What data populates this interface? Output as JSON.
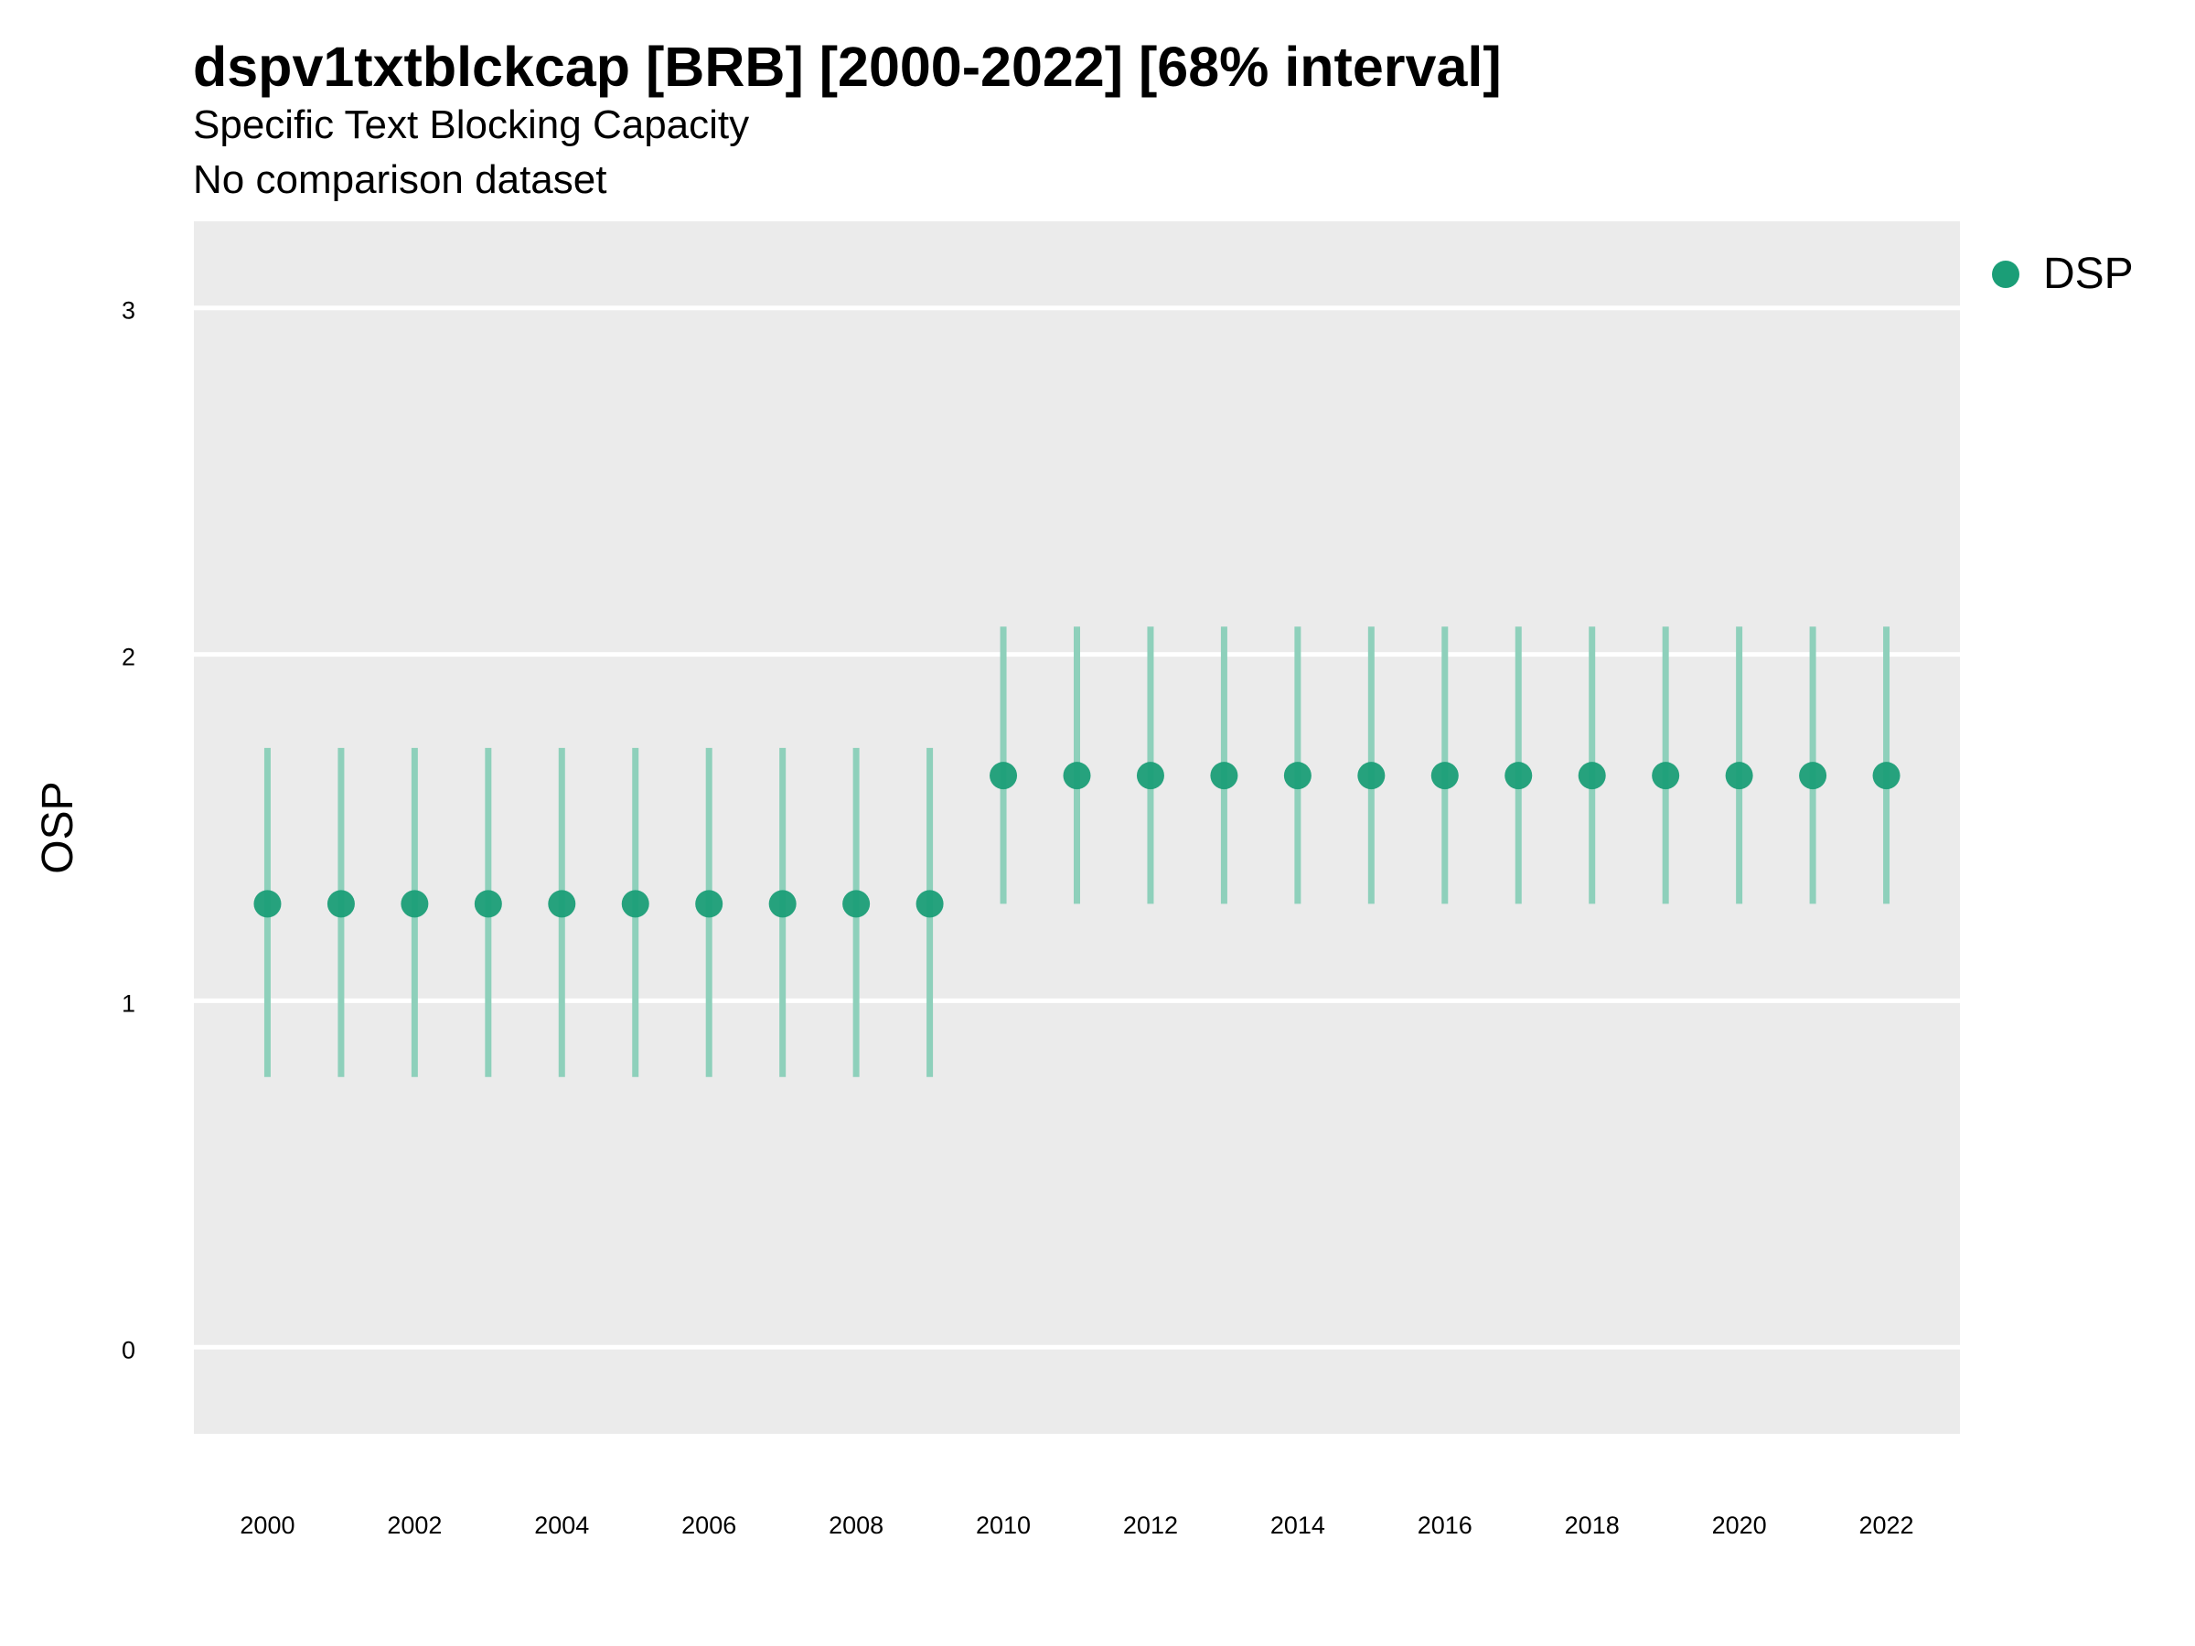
{
  "title": "dspv1txtblckcap [BRB] [2000-2022] [68% interval]",
  "subtitle": "Specific Text Blocking Capacity",
  "caption": "No comparison dataset",
  "colors": {
    "panel_bg": "#EBEBEB",
    "grid": "#FFFFFF",
    "point": "#1B9E77",
    "interval": "#8ED0BB"
  },
  "chart_data": {
    "type": "scatter",
    "ylabel": "OSP",
    "xlabel": "",
    "xlim": [
      1999,
      2023
    ],
    "ylim": [
      -0.25,
      3.25
    ],
    "yticks": [
      0,
      1,
      2,
      3
    ],
    "xticks": [
      2000,
      2002,
      2004,
      2006,
      2008,
      2010,
      2012,
      2014,
      2016,
      2018,
      2020,
      2022
    ],
    "grid": true,
    "legend": {
      "position": "right",
      "entries": [
        "DSP"
      ]
    },
    "series": [
      {
        "name": "DSP",
        "x": [
          2000,
          2001,
          2002,
          2003,
          2004,
          2005,
          2006,
          2007,
          2008,
          2009,
          2010,
          2011,
          2012,
          2013,
          2014,
          2015,
          2016,
          2017,
          2018,
          2019,
          2020,
          2021,
          2022
        ],
        "y": [
          1.28,
          1.28,
          1.28,
          1.28,
          1.28,
          1.28,
          1.28,
          1.28,
          1.28,
          1.28,
          1.65,
          1.65,
          1.65,
          1.65,
          1.65,
          1.65,
          1.65,
          1.65,
          1.65,
          1.65,
          1.65,
          1.65,
          1.65
        ],
        "lower": [
          0.78,
          0.78,
          0.78,
          0.78,
          0.78,
          0.78,
          0.78,
          0.78,
          0.78,
          0.78,
          1.28,
          1.28,
          1.28,
          1.28,
          1.28,
          1.28,
          1.28,
          1.28,
          1.28,
          1.28,
          1.28,
          1.28,
          1.28
        ],
        "upper": [
          1.73,
          1.73,
          1.73,
          1.73,
          1.73,
          1.73,
          1.73,
          1.73,
          1.73,
          1.73,
          2.08,
          2.08,
          2.08,
          2.08,
          2.08,
          2.08,
          2.08,
          2.08,
          2.08,
          2.08,
          2.08,
          2.08,
          2.08
        ]
      }
    ]
  }
}
